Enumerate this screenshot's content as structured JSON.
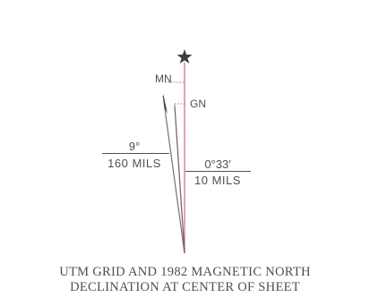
{
  "labels": {
    "magnetic_north": "MN",
    "grid_north": "GN",
    "mn_degrees": "9°",
    "mn_mils": "160 MILS",
    "gn_degrees": "0°33′",
    "gn_mils": "10 MILS"
  },
  "caption": {
    "line1": "UTM GRID AND 1982 MAGNETIC NORTH",
    "line2": "DECLINATION AT CENTER OF SHEET"
  },
  "colors": {
    "true_north_line": "#c46f80",
    "magnetic_line": "#7b6f6f",
    "grid_line": "#6b6060",
    "text": "#5a4c4c",
    "star": "#3c3c3c"
  }
}
